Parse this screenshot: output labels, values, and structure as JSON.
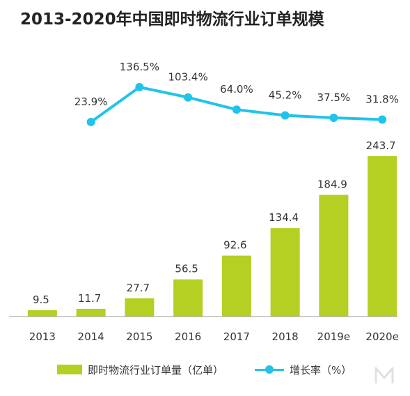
{
  "chart_data": {
    "type": "bar",
    "title": "2013-2020年中国即时物流行业订单规模",
    "categories": [
      "2013",
      "2014",
      "2015",
      "2016",
      "2017",
      "2018",
      "2019e",
      "2020e"
    ],
    "series": [
      {
        "name": "即时物流行业订单量（亿单）",
        "type": "bar",
        "values": [
          9.5,
          11.7,
          27.7,
          56.5,
          92.6,
          134.4,
          184.9,
          243.7
        ],
        "labels": [
          "9.5",
          "11.7",
          "27.7",
          "56.5",
          "92.6",
          "134.4",
          "184.9",
          "243.7"
        ],
        "color": "#B5CF22"
      },
      {
        "name": "增长率（%）",
        "type": "line",
        "values": [
          null,
          23.9,
          136.5,
          103.4,
          64.0,
          45.2,
          37.5,
          31.8
        ],
        "labels": [
          "",
          "23.9%",
          "136.5%",
          "103.4%",
          "64.0%",
          "45.2%",
          "37.5%",
          "31.8%"
        ],
        "color": "#20C4EA"
      }
    ],
    "grid": false,
    "legend_position": "bottom"
  }
}
